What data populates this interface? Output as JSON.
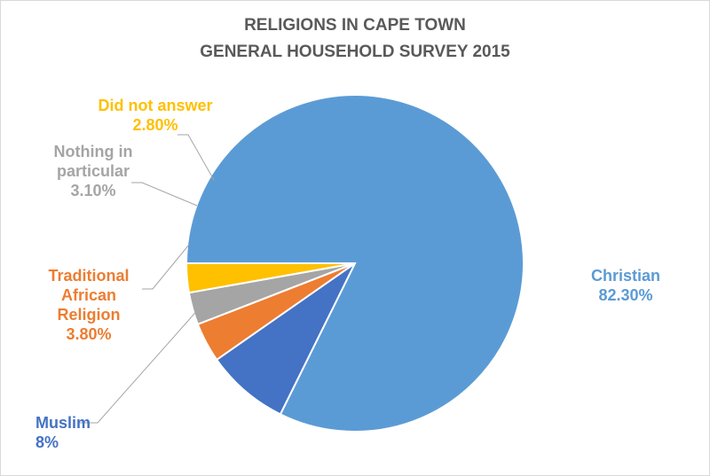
{
  "chart_data": {
    "type": "pie",
    "title": [
      "RELIGIONS IN CAPE TOWN",
      "GENERAL HOUSEHOLD SURVEY 2015"
    ],
    "start_angle_deg": 180,
    "direction": "clockwise",
    "slices": [
      {
        "label": [
          "Christian"
        ],
        "value_label": "82.30%",
        "value": 82.3,
        "color": "#5B9BD5"
      },
      {
        "label": [
          "Muslim"
        ],
        "value_label": "8%",
        "value": 8.0,
        "color": "#4472C4"
      },
      {
        "label": [
          "Traditional",
          "African",
          "Religion"
        ],
        "value_label": "3.80%",
        "value": 3.8,
        "color": "#ED7D31"
      },
      {
        "label": [
          "Nothing in",
          "particular"
        ],
        "value_label": "3.10%",
        "value": 3.1,
        "color": "#A5A5A5"
      },
      {
        "label": [
          "Did not answer"
        ],
        "value_label": "2.80%",
        "value": 2.8,
        "color": "#FFC000"
      }
    ]
  }
}
